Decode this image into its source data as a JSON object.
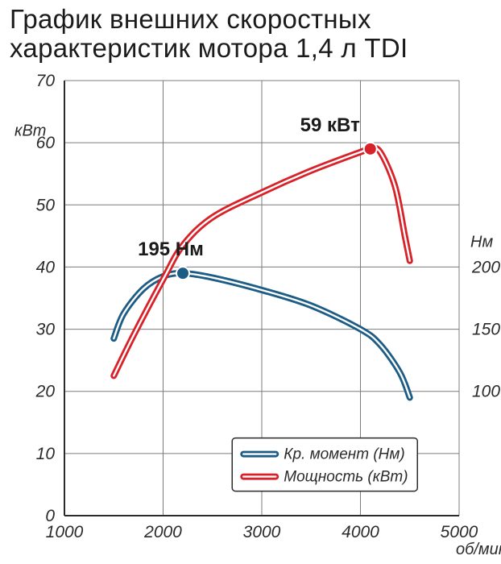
{
  "title_line1": "График внешних скоростных",
  "title_line2": "характеристик мотора 1,4 л TDI",
  "chart": {
    "type": "line",
    "background_color": "#ffffff",
    "grid_color": "#7c7c7c",
    "grid_width": 1,
    "axis_color": "#2b2b2b",
    "axis_width": 2,
    "x": {
      "label": "об/мин",
      "lim": [
        1000,
        5000
      ],
      "ticks": [
        1000,
        2000,
        3000,
        4000,
        5000
      ]
    },
    "y_left": {
      "label": "кВт",
      "lim": [
        0,
        70
      ],
      "ticks": [
        0,
        10,
        20,
        30,
        40,
        50,
        60,
        70
      ]
    },
    "y_right": {
      "label": "Нм",
      "ticks": [
        {
          "v_left": 20,
          "label": "100"
        },
        {
          "v_left": 30,
          "label": "150"
        },
        {
          "v_left": 40,
          "label": "200"
        }
      ]
    },
    "series": {
      "torque": {
        "name": "Кр. момент (Нм)",
        "color": "#1c5c85",
        "inner": "#ffffff",
        "width_outer": 8,
        "width_inner": 2.4,
        "points": [
          [
            1500,
            28.5
          ],
          [
            1600,
            32.5
          ],
          [
            1800,
            36.5
          ],
          [
            2000,
            38.5
          ],
          [
            2200,
            39.0
          ],
          [
            2500,
            38.3
          ],
          [
            3000,
            36.3
          ],
          [
            3500,
            33.8
          ],
          [
            4000,
            30.0
          ],
          [
            4200,
            27.5
          ],
          [
            4400,
            23.0
          ],
          [
            4500,
            19.0
          ]
        ],
        "marker": {
          "x": 2200,
          "y": 39.0,
          "label": "195 Нм",
          "label_dx": -15,
          "label_dy": -22
        }
      },
      "power": {
        "name": "Мощность (кВт)",
        "color": "#d8222a",
        "inner": "#ffffff",
        "width_outer": 8,
        "width_inner": 2.4,
        "points": [
          [
            1500,
            22.5
          ],
          [
            1700,
            29.0
          ],
          [
            2000,
            38.0
          ],
          [
            2200,
            43.5
          ],
          [
            2500,
            48.0
          ],
          [
            3000,
            52.0
          ],
          [
            3500,
            55.5
          ],
          [
            4000,
            58.5
          ],
          [
            4100,
            59.0
          ],
          [
            4200,
            58.5
          ],
          [
            4350,
            53.0
          ],
          [
            4450,
            45.0
          ],
          [
            4500,
            41.0
          ]
        ],
        "marker": {
          "x": 4100,
          "y": 59.0,
          "label": "59 кВт",
          "label_dx": -50,
          "label_dy": -22
        }
      }
    },
    "legend": {
      "border_color": "#2b2b2b",
      "bg": "#ffffff",
      "corner_radius": 4
    },
    "font": {
      "tick_size": 21,
      "tick_style": "italic",
      "label_size": 20,
      "callout_size": 24,
      "callout_weight": "bold",
      "legend_size": 19,
      "title_size": 33,
      "family": "Arial"
    }
  }
}
